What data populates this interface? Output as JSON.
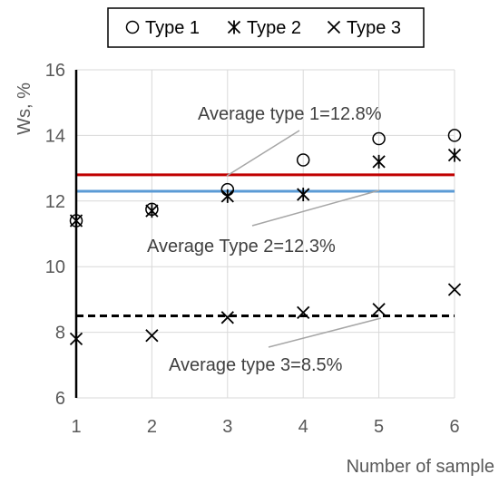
{
  "chart_data": {
    "type": "scatter",
    "title": "",
    "xlabel": "Number of sample",
    "ylabel": "Ws, %",
    "xlim": [
      1,
      6
    ],
    "ylim": [
      6,
      16
    ],
    "x_ticks": [
      "1",
      "2",
      "3",
      "4",
      "5",
      "6"
    ],
    "y_ticks": [
      "6",
      "8",
      "10",
      "12",
      "14",
      "16"
    ],
    "grid": true,
    "legend_position": "top",
    "series": [
      {
        "name": "Type 1",
        "marker": "circle",
        "x": [
          1,
          2,
          3,
          4,
          5,
          6
        ],
        "y": [
          11.4,
          11.75,
          12.35,
          13.25,
          13.9,
          14.0
        ]
      },
      {
        "name": "Type 2",
        "marker": "star",
        "x": [
          1,
          2,
          3,
          4,
          5,
          6
        ],
        "y": [
          11.4,
          11.7,
          12.15,
          12.2,
          13.2,
          13.4
        ]
      },
      {
        "name": "Type 3",
        "marker": "x",
        "x": [
          1,
          2,
          3,
          4,
          5,
          6
        ],
        "y": [
          7.8,
          7.9,
          8.45,
          8.6,
          8.7,
          9.3
        ]
      }
    ],
    "reference_lines": [
      {
        "y": 12.8,
        "color": "#c00000",
        "style": "solid",
        "label": "Average type 1=12.8%"
      },
      {
        "y": 12.3,
        "color": "#5b9bd5",
        "style": "solid",
        "label": "Average Type 2=12.3%"
      },
      {
        "y": 8.5,
        "color": "#000000",
        "style": "dashed",
        "label": "Average type 3=8.5%"
      }
    ]
  }
}
